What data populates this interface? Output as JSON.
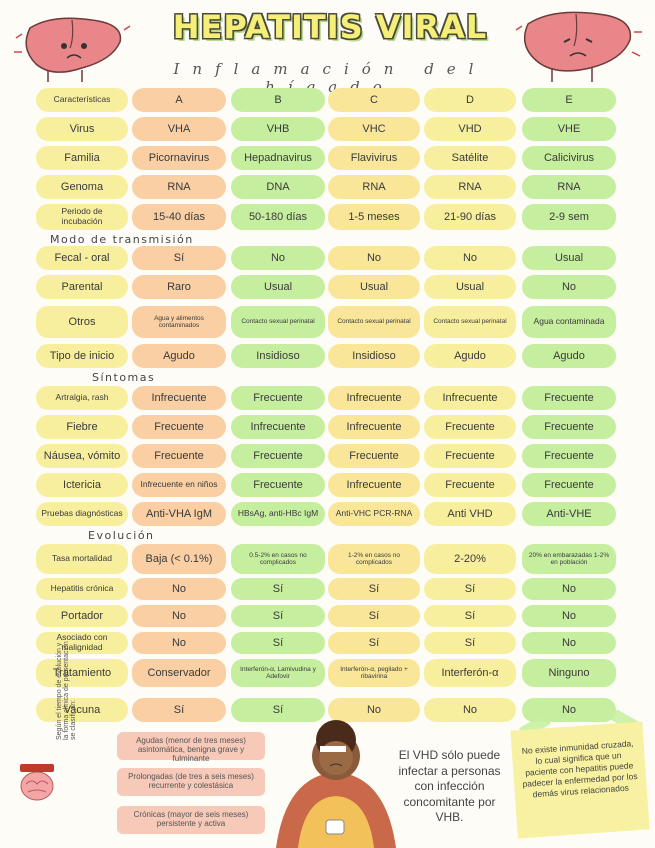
{
  "header": {
    "title": "HEPATITIS VIRAL",
    "subtitle": "Inflamación del hígado"
  },
  "columns": [
    "A",
    "B",
    "C",
    "D",
    "E"
  ],
  "sections": {
    "transmision": "Modo de transmisión",
    "sintomas": "Síntomas",
    "evolucion": "Evolución"
  },
  "rows": [
    {
      "label": "Características",
      "values": [
        "A",
        "B",
        "C",
        "D",
        "E"
      ]
    },
    {
      "label": "Virus",
      "values": [
        "VHA",
        "VHB",
        "VHC",
        "VHD",
        "VHE"
      ]
    },
    {
      "label": "Familia",
      "values": [
        "Picornavirus",
        "Hepadnavirus",
        "Flavivirus",
        "Satélite",
        "Calicivirus"
      ]
    },
    {
      "label": "Genoma",
      "values": [
        "RNA",
        "DNA",
        "RNA",
        "RNA",
        "RNA"
      ]
    },
    {
      "label": "Periodo de incubación",
      "values": [
        "15-40 días",
        "50-180 días",
        "1-5 meses",
        "21-90 días",
        "2-9 sem"
      ]
    },
    {
      "label": "Fecal - oral",
      "values": [
        "Sí",
        "No",
        "No",
        "No",
        "Usual"
      ]
    },
    {
      "label": "Parental",
      "values": [
        "Raro",
        "Usual",
        "Usual",
        "Usual",
        "No"
      ]
    },
    {
      "label": "Otros",
      "values": [
        "Agua y alimentos contaminados",
        "Contacto sexual perinatal",
        "Contacto sexual perinatal",
        "Contacto sexual perinatal",
        "Agua contaminada"
      ]
    },
    {
      "label": "Tipo de inicio",
      "values": [
        "Agudo",
        "Insidioso",
        "Insidioso",
        "Agudo",
        "Agudo"
      ]
    },
    {
      "label": "Artralgia, rash",
      "values": [
        "Infrecuente",
        "Frecuente",
        "Infrecuente",
        "Infrecuente",
        "Frecuente"
      ]
    },
    {
      "label": "Fiebre",
      "values": [
        "Frecuente",
        "Infrecuente",
        "Infrecuente",
        "Frecuente",
        "Frecuente"
      ]
    },
    {
      "label": "Náusea, vómito",
      "values": [
        "Frecuente",
        "Frecuente",
        "Frecuente",
        "Frecuente",
        "Frecuente"
      ]
    },
    {
      "label": "Ictericia",
      "values": [
        "Infrecuente en niños",
        "Frecuente",
        "Infrecuente",
        "Frecuente",
        "Frecuente"
      ]
    },
    {
      "label": "Pruebas diagnósticas",
      "values": [
        "Anti-VHA IgM",
        "HBsAg, anti-HBc IgM",
        "Anti-VHC PCR-RNA",
        "Anti VHD",
        "Anti-VHE"
      ]
    },
    {
      "label": "Tasa mortalidad",
      "values": [
        "Baja (< 0.1%)",
        "0.5-2% en casos no complicados",
        "1-2% en casos no complicados",
        "2-20%",
        "20% en embarazadas 1-2% en población"
      ]
    },
    {
      "label": "Hepatitis crónica",
      "values": [
        "No",
        "Sí",
        "Sí",
        "Sí",
        "No"
      ]
    },
    {
      "label": "Portador",
      "values": [
        "No",
        "Sí",
        "Sí",
        "Sí",
        "No"
      ]
    },
    {
      "label": "Asociado con malignidad",
      "values": [
        "No",
        "Sí",
        "Sí",
        "Sí",
        "No"
      ]
    },
    {
      "label": "Tratamiento",
      "values": [
        "Conservador",
        "Interferón-α, Lamivudina y Adefovir",
        "Interferón-α, pegilado + ribavirina",
        "Interferón-α",
        "Ninguno"
      ]
    },
    {
      "label": "Vacuna",
      "values": [
        "Sí",
        "Sí",
        "No",
        "No",
        "No"
      ]
    }
  ],
  "legend": {
    "side_text": "Según el tiempo de evolución y la forma clínica de presentación se clasifican:",
    "items": [
      "Agudas (menor de tres meses) asintomática, benigna grave y fulminante",
      "Prolongadas (de tres a seis meses) recurrente y colestásica",
      "Crónicas (mayor de seis meses) persistente y activa"
    ]
  },
  "note_vhd": "El VHD sólo puede infectar a personas con infección concomitante por VHB.",
  "sticky_note": "No existe inmunidad cruzada, lo cual significa que un paciente con hepatitis puede padecer la enfermedad por los demás virus relacionados",
  "colors": {
    "label": "#f8ef9e",
    "A": "#f9cfa3",
    "B": "#c6ee9f",
    "C": "#f9e699",
    "D": "#f8ef9e",
    "E": "#c6ee9f"
  }
}
